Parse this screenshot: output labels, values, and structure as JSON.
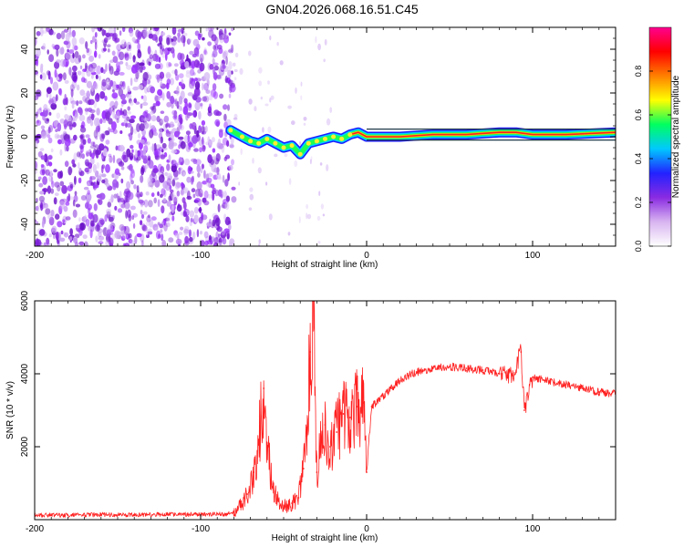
{
  "figure_title": "GN04.2026.068.16.51.C45",
  "chart_data": [
    {
      "type": "heatmap",
      "title": "GN04.2026.068.16.51.C45",
      "xlabel": "Height of straight line (km)",
      "ylabel": "Frequency (Hz)",
      "xlim": [
        -200,
        150
      ],
      "ylim": [
        -50,
        50
      ],
      "x_ticks": [
        -200,
        -100,
        0,
        100
      ],
      "y_ticks": [
        -40,
        -20,
        0,
        20,
        40
      ],
      "colorbar": {
        "label": "Normalized spectral amplitude",
        "range": [
          0,
          1
        ],
        "ticks": [
          0.0,
          0.2,
          0.4,
          0.6,
          0.8
        ],
        "colors": [
          "#ffffff",
          "#d8b4f0",
          "#8a2be2",
          "#2222ff",
          "#00c8ff",
          "#00ff60",
          "#ffff00",
          "#ff8000",
          "#ff0000",
          "#ff0090"
        ]
      },
      "noise_region_x": [
        -200,
        -80
      ],
      "ridge": [
        {
          "x": -82,
          "y": 3
        },
        {
          "x": -75,
          "y": 0
        },
        {
          "x": -70,
          "y": -2
        },
        {
          "x": -65,
          "y": -3
        },
        {
          "x": -60,
          "y": -1
        },
        {
          "x": -55,
          "y": -3
        },
        {
          "x": -50,
          "y": -5
        },
        {
          "x": -45,
          "y": -4
        },
        {
          "x": -40,
          "y": -8
        },
        {
          "x": -35,
          "y": -3
        },
        {
          "x": -30,
          "y": -2
        },
        {
          "x": -25,
          "y": -1
        },
        {
          "x": -20,
          "y": 0
        },
        {
          "x": -15,
          "y": -1
        },
        {
          "x": -10,
          "y": 1
        },
        {
          "x": -5,
          "y": 2
        },
        {
          "x": 0,
          "y": 0
        },
        {
          "x": 20,
          "y": 0
        },
        {
          "x": 40,
          "y": 1
        },
        {
          "x": 60,
          "y": 1
        },
        {
          "x": 80,
          "y": 2
        },
        {
          "x": 90,
          "y": 2
        },
        {
          "x": 100,
          "y": 1
        },
        {
          "x": 120,
          "y": 1
        },
        {
          "x": 150,
          "y": 2
        }
      ]
    },
    {
      "type": "line",
      "xlabel": "Height of straight line (km)",
      "ylabel": "SNR (10 * v/v)",
      "xlim": [
        -200,
        150
      ],
      "ylim": [
        0,
        6000
      ],
      "x_ticks": [
        -200,
        -100,
        0,
        100
      ],
      "y_ticks": [
        2000,
        4000,
        6000
      ],
      "series": [
        {
          "name": "SNR",
          "color": "#ff2020",
          "points": [
            {
              "x": -200,
              "y": 130
            },
            {
              "x": -180,
              "y": 120
            },
            {
              "x": -160,
              "y": 140
            },
            {
              "x": -140,
              "y": 130
            },
            {
              "x": -120,
              "y": 150
            },
            {
              "x": -100,
              "y": 140
            },
            {
              "x": -85,
              "y": 150
            },
            {
              "x": -78,
              "y": 250
            },
            {
              "x": -72,
              "y": 700
            },
            {
              "x": -68,
              "y": 1300
            },
            {
              "x": -65,
              "y": 2200
            },
            {
              "x": -62,
              "y": 3600
            },
            {
              "x": -60,
              "y": 2100
            },
            {
              "x": -57,
              "y": 900
            },
            {
              "x": -53,
              "y": 500
            },
            {
              "x": -49,
              "y": 350
            },
            {
              "x": -45,
              "y": 450
            },
            {
              "x": -41,
              "y": 600
            },
            {
              "x": -38,
              "y": 1400
            },
            {
              "x": -36,
              "y": 2300
            },
            {
              "x": -34,
              "y": 4600
            },
            {
              "x": -32,
              "y": 6000
            },
            {
              "x": -30,
              "y": 1300
            },
            {
              "x": -28,
              "y": 1900
            },
            {
              "x": -25,
              "y": 2600
            },
            {
              "x": -22,
              "y": 2000
            },
            {
              "x": -18,
              "y": 2400
            },
            {
              "x": -14,
              "y": 2900
            },
            {
              "x": -10,
              "y": 2800
            },
            {
              "x": -6,
              "y": 3100
            },
            {
              "x": -2,
              "y": 3200
            },
            {
              "x": 0,
              "y": 1300
            },
            {
              "x": 3,
              "y": 3100
            },
            {
              "x": 8,
              "y": 3300
            },
            {
              "x": 15,
              "y": 3600
            },
            {
              "x": 20,
              "y": 3800
            },
            {
              "x": 25,
              "y": 3950
            },
            {
              "x": 30,
              "y": 4050
            },
            {
              "x": 40,
              "y": 4150
            },
            {
              "x": 50,
              "y": 4200
            },
            {
              "x": 60,
              "y": 4150
            },
            {
              "x": 70,
              "y": 4100
            },
            {
              "x": 80,
              "y": 4000
            },
            {
              "x": 88,
              "y": 3950
            },
            {
              "x": 93,
              "y": 4600
            },
            {
              "x": 95,
              "y": 3000
            },
            {
              "x": 100,
              "y": 3900
            },
            {
              "x": 110,
              "y": 3800
            },
            {
              "x": 120,
              "y": 3700
            },
            {
              "x": 130,
              "y": 3600
            },
            {
              "x": 140,
              "y": 3500
            },
            {
              "x": 150,
              "y": 3450
            }
          ]
        }
      ]
    }
  ]
}
